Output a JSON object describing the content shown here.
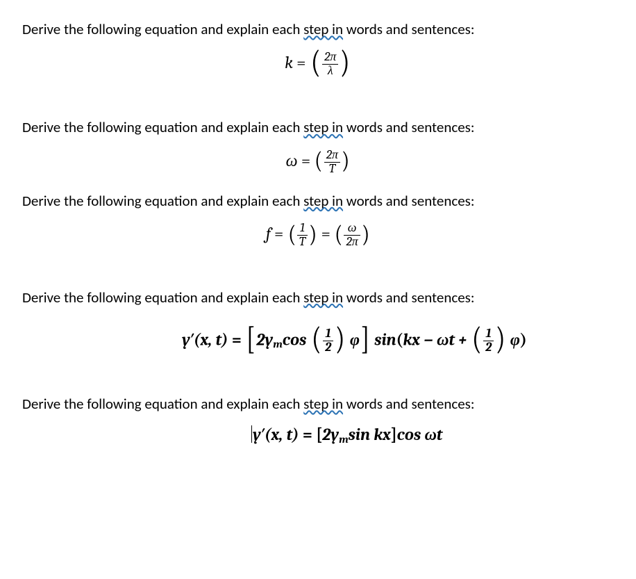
{
  "document_type": "physics_worksheet",
  "font_body": "Calibri",
  "font_math": "Cambria Math",
  "colors": {
    "text": "#000000",
    "background": "#ffffff",
    "spellcheck_underline": "#2e74b5"
  },
  "prompt_parts": {
    "before": "Derive the following equation and explain each ",
    "err": "step in",
    "after": " words and sentences:"
  },
  "equations": {
    "eq1": {
      "lhs": "k",
      "op": "=",
      "rhs_num": "2π",
      "rhs_den": "λ",
      "paren": "big"
    },
    "eq2": {
      "lhs": "ω",
      "op": "=",
      "rhs_num": "2π",
      "rhs_den": "T",
      "paren": "mid"
    },
    "eq3": {
      "lhs": "f",
      "op": "=",
      "mid_num": "1",
      "mid_den": "T",
      "rhs_num": "ω",
      "rhs_den": "2π",
      "paren": "mid"
    },
    "eq4": {
      "full_tex": "y'(x,t) = [2 y_m cos(1/2)φ] sin(kx − ωt + (1/2)φ)",
      "lhs": "y′(x, t)",
      "eqs": "=",
      "coef": "2y",
      "coef_sub": "m",
      "func1": "cos",
      "half_num": "1",
      "half_den": "2",
      "phi": "φ",
      "func2": "sin",
      "arg2a": "kx − ωt + "
    },
    "eq5": {
      "full_tex": "y'(x,t) = [2 y_m sin kx] cos ωt",
      "lhs": "y′(x, t)",
      "eqs": "=",
      "coef": "2y",
      "coef_sub": "m",
      "func1": "sin",
      "arg1": " kx",
      "func2": "cos",
      "arg2": " ωt"
    }
  }
}
